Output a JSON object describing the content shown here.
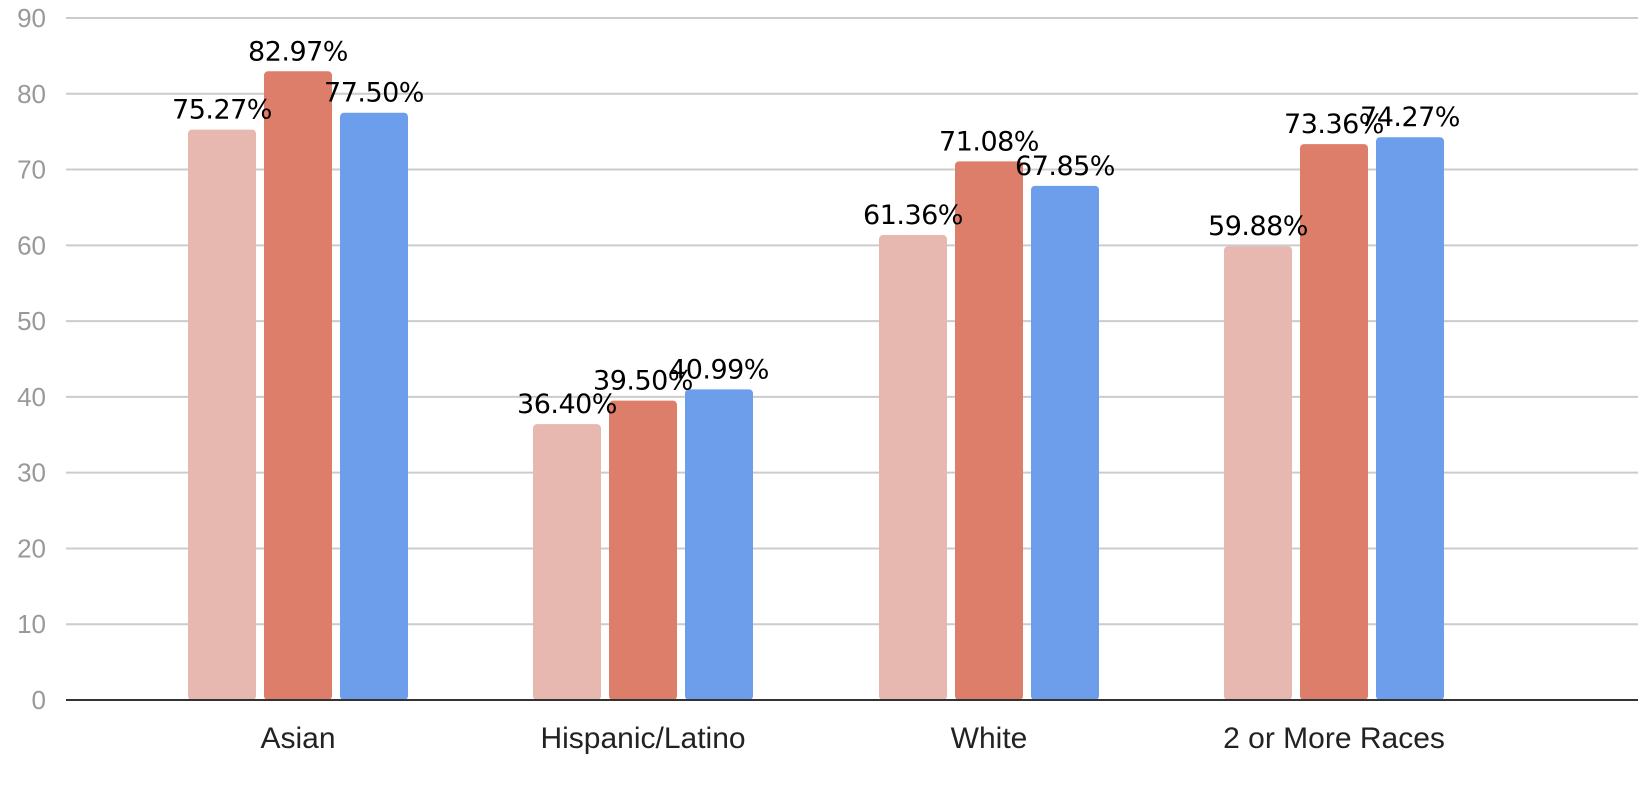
{
  "chart_data": {
    "type": "bar",
    "title": "",
    "xlabel": "",
    "ylabel": "",
    "ylim": [
      0,
      90
    ],
    "y_ticks": [
      0,
      10,
      20,
      30,
      40,
      50,
      60,
      70,
      80,
      90
    ],
    "grid": true,
    "legend": "none",
    "categories": [
      "Asian",
      "Hispanic/Latino",
      "White",
      "2 or More Races"
    ],
    "series": [
      {
        "color": "#e6b8af",
        "values": [
          75.27,
          36.4,
          61.36,
          59.88
        ],
        "labels": [
          "75.27%",
          "36.40%",
          "61.36%",
          "59.88%"
        ]
      },
      {
        "color": "#dd7e6b",
        "values": [
          82.97,
          39.5,
          71.08,
          73.36
        ],
        "labels": [
          "82.97%",
          "39.50%",
          "71.08%",
          "73.36%"
        ]
      },
      {
        "color": "#6d9eeb",
        "values": [
          77.5,
          40.99,
          67.85,
          74.27
        ],
        "labels": [
          "77.50%",
          "40.99%",
          "67.85%",
          "74.27%"
        ]
      }
    ]
  }
}
